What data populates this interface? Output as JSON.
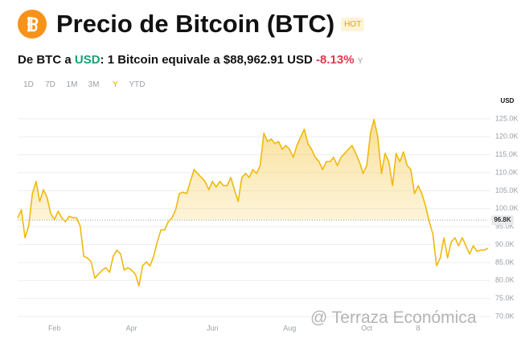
{
  "header": {
    "title": "Precio de Bitcoin (BTC)",
    "badge": "HOT",
    "subtitle": {
      "lead": "De BTC a ",
      "currency": "USD",
      "rest": ": 1 Bitcoin equivale a $88,962.91 USD ",
      "change": "-8.13%",
      "period": "Y"
    },
    "ranges": [
      "1D",
      "7D",
      "1M",
      "3M",
      "Y",
      "YTD"
    ],
    "active_range": "Y"
  },
  "watermark": "@ Terraza Económica",
  "chart_data": {
    "type": "line",
    "y_unit": "USD",
    "categories": [
      null,
      null,
      null,
      null,
      null,
      null,
      null,
      null,
      null,
      null,
      "Feb",
      null,
      null,
      null,
      null,
      null,
      null,
      null,
      null,
      null,
      null,
      null,
      null,
      null,
      null,
      null,
      null,
      null,
      null,
      null,
      null,
      "Apr",
      null,
      null,
      null,
      null,
      null,
      null,
      null,
      null,
      null,
      null,
      null,
      null,
      null,
      null,
      null,
      null,
      null,
      null,
      null,
      null,
      null,
      "Jun",
      null,
      null,
      null,
      null,
      null,
      null,
      null,
      null,
      null,
      null,
      null,
      null,
      null,
      null,
      null,
      null,
      null,
      null,
      null,
      null,
      "Aug",
      null,
      null,
      null,
      null,
      null,
      null,
      null,
      null,
      null,
      null,
      null,
      null,
      null,
      null,
      null,
      null,
      null,
      null,
      null,
      null,
      "Oct",
      null,
      null,
      null,
      null,
      null,
      null,
      null,
      null,
      null,
      null,
      null,
      null,
      null,
      "8",
      null,
      null,
      null,
      null,
      null,
      null,
      null,
      null,
      null,
      null,
      null,
      null,
      null,
      null,
      null,
      null,
      null,
      null,
      null
    ],
    "series": [
      {
        "color": "#f0b90b",
        "values": [
          97.5,
          99.7,
          91.9,
          95.2,
          104.2,
          107.6,
          102.0,
          105.3,
          103.1,
          98.6,
          97.0,
          99.3,
          97.5,
          96.4,
          97.9,
          97.5,
          97.5,
          95.2,
          86.7,
          86.3,
          85.2,
          80.7,
          81.8,
          82.9,
          83.6,
          82.3,
          86.7,
          88.5,
          87.4,
          82.9,
          83.6,
          82.9,
          81.8,
          78.5,
          84.1,
          85.2,
          84.1,
          86.7,
          90.8,
          94.1,
          94.1,
          96.4,
          97.5,
          99.7,
          104.2,
          104.6,
          104.2,
          107.6,
          110.9,
          109.8,
          108.7,
          107.6,
          105.3,
          107.6,
          106.0,
          107.6,
          106.4,
          106.4,
          108.7,
          105.3,
          102.0,
          108.7,
          109.8,
          108.7,
          110.9,
          109.8,
          112.0,
          121.0,
          118.7,
          119.4,
          118.1,
          118.7,
          116.5,
          117.6,
          116.5,
          114.3,
          117.6,
          119.9,
          122.1,
          118.1,
          116.5,
          114.3,
          113.1,
          110.9,
          113.1,
          113.1,
          114.3,
          112.0,
          114.3,
          115.4,
          116.5,
          117.6,
          115.4,
          113.1,
          109.8,
          112.0,
          121.0,
          124.8,
          119.9,
          109.8,
          115.4,
          113.1,
          106.4,
          115.4,
          113.1,
          115.8,
          112.0,
          110.9,
          104.2,
          106.4,
          104.2,
          100.8,
          96.4,
          93.0,
          84.1,
          86.3,
          91.9,
          86.3,
          90.8,
          91.9,
          89.7,
          91.9,
          89.7,
          87.4,
          89.7,
          88.1,
          88.5,
          88.5,
          89.0
        ]
      }
    ],
    "reference": {
      "value": 96.8,
      "label": "96.8K"
    },
    "ylim": [
      68,
      129
    ],
    "yticks": [
      {
        "value": 70,
        "label": "70.0K"
      },
      {
        "value": 75,
        "label": "75.0K"
      },
      {
        "value": 80,
        "label": "80.0K"
      },
      {
        "value": 85,
        "label": "85.0K"
      },
      {
        "value": 90,
        "label": "90.0K"
      },
      {
        "value": 95,
        "label": "95.0K"
      },
      {
        "value": 100,
        "label": "100.0K"
      },
      {
        "value": 105,
        "label": "105.0K"
      },
      {
        "value": 110,
        "label": "110.0K"
      },
      {
        "value": 115,
        "label": "115.0K"
      },
      {
        "value": 120,
        "label": "120.0K"
      },
      {
        "value": 125,
        "label": "125.0K"
      }
    ],
    "grid": true
  }
}
